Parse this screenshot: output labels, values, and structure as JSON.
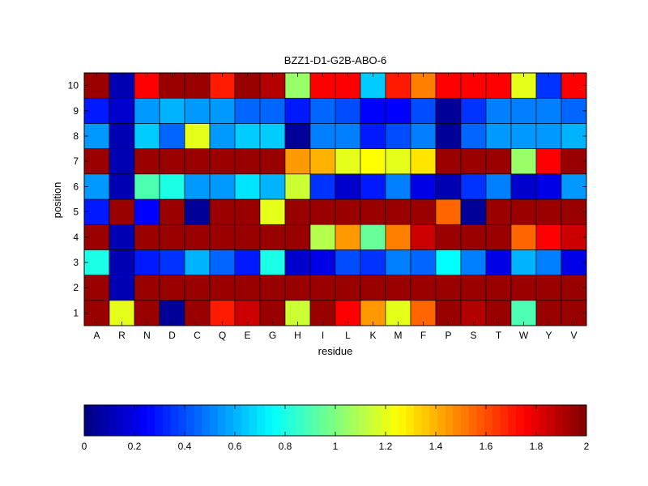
{
  "chart_data": {
    "type": "heatmap",
    "title": "BZZ1-D1-G2B-ABO-6",
    "xlabel": "residue",
    "ylabel": "position",
    "x_categories": [
      "A",
      "R",
      "N",
      "D",
      "C",
      "Q",
      "E",
      "G",
      "H",
      "I",
      "L",
      "K",
      "M",
      "F",
      "P",
      "S",
      "T",
      "W",
      "Y",
      "V"
    ],
    "y_categories": [
      "1",
      "2",
      "3",
      "4",
      "5",
      "6",
      "7",
      "8",
      "9",
      "10"
    ],
    "colormap": "jet",
    "clim": [
      0,
      2
    ],
    "colorbar": {
      "orientation": "horizontal",
      "placement": "bottom",
      "ticks": [
        "0",
        "0.2",
        "0.4",
        "0.6",
        "0.8",
        "1",
        "1.2",
        "1.4",
        "1.6",
        "1.8",
        "2"
      ],
      "tick_values": [
        0,
        0.2,
        0.4,
        0.6,
        0.8,
        1,
        1.2,
        1.4,
        1.6,
        1.8,
        2
      ]
    },
    "values": [
      [
        1.95,
        1.2,
        1.95,
        0.05,
        1.95,
        1.7,
        1.85,
        1.95,
        1.15,
        1.95,
        1.75,
        1.45,
        1.2,
        1.55,
        1.95,
        1.9,
        1.95,
        0.9,
        1.95,
        1.95
      ],
      [
        1.95,
        0.1,
        1.95,
        1.95,
        1.95,
        1.95,
        1.95,
        1.95,
        1.95,
        1.95,
        1.95,
        1.95,
        1.95,
        1.95,
        1.95,
        1.95,
        1.95,
        1.95,
        1.95,
        1.95
      ],
      [
        0.8,
        0.1,
        0.3,
        0.35,
        0.6,
        0.45,
        0.3,
        0.8,
        0.15,
        0.2,
        0.4,
        0.35,
        0.5,
        0.45,
        0.75,
        0.5,
        0.2,
        0.6,
        0.5,
        0.2
      ],
      [
        1.95,
        0.1,
        1.95,
        1.95,
        1.95,
        1.95,
        1.95,
        1.95,
        1.95,
        1.1,
        1.45,
        0.95,
        1.5,
        1.85,
        1.95,
        1.95,
        1.95,
        1.55,
        1.75,
        1.85
      ],
      [
        0.3,
        1.95,
        0.25,
        1.95,
        0.05,
        1.95,
        1.95,
        1.2,
        1.95,
        1.95,
        1.95,
        1.95,
        1.95,
        1.95,
        1.55,
        0.05,
        1.95,
        1.95,
        1.95,
        1.95
      ],
      [
        0.55,
        0.1,
        0.9,
        0.8,
        0.55,
        0.55,
        0.7,
        0.6,
        1.15,
        0.35,
        0.15,
        0.3,
        0.5,
        0.2,
        0.1,
        0.35,
        0.5,
        0.15,
        0.2,
        0.55
      ],
      [
        1.95,
        0.1,
        1.95,
        1.95,
        1.95,
        1.95,
        1.95,
        1.95,
        1.45,
        1.4,
        1.2,
        1.25,
        1.2,
        1.3,
        1.95,
        1.95,
        1.95,
        1.05,
        1.75,
        1.95
      ],
      [
        0.55,
        0.1,
        0.65,
        0.45,
        1.2,
        0.55,
        0.65,
        0.65,
        0.05,
        0.5,
        0.5,
        0.3,
        0.4,
        0.5,
        0.05,
        0.45,
        0.55,
        0.55,
        0.55,
        0.6
      ],
      [
        0.3,
        0.15,
        0.55,
        0.6,
        0.55,
        0.55,
        0.45,
        0.45,
        0.3,
        0.45,
        0.4,
        0.25,
        0.25,
        0.4,
        0.05,
        0.35,
        0.5,
        0.5,
        0.5,
        0.45
      ],
      [
        1.95,
        0.1,
        1.75,
        1.95,
        1.95,
        1.7,
        1.95,
        1.9,
        1.05,
        1.75,
        1.75,
        0.65,
        1.7,
        1.5,
        1.75,
        1.75,
        1.75,
        1.2,
        0.35,
        1.75
      ]
    ]
  }
}
